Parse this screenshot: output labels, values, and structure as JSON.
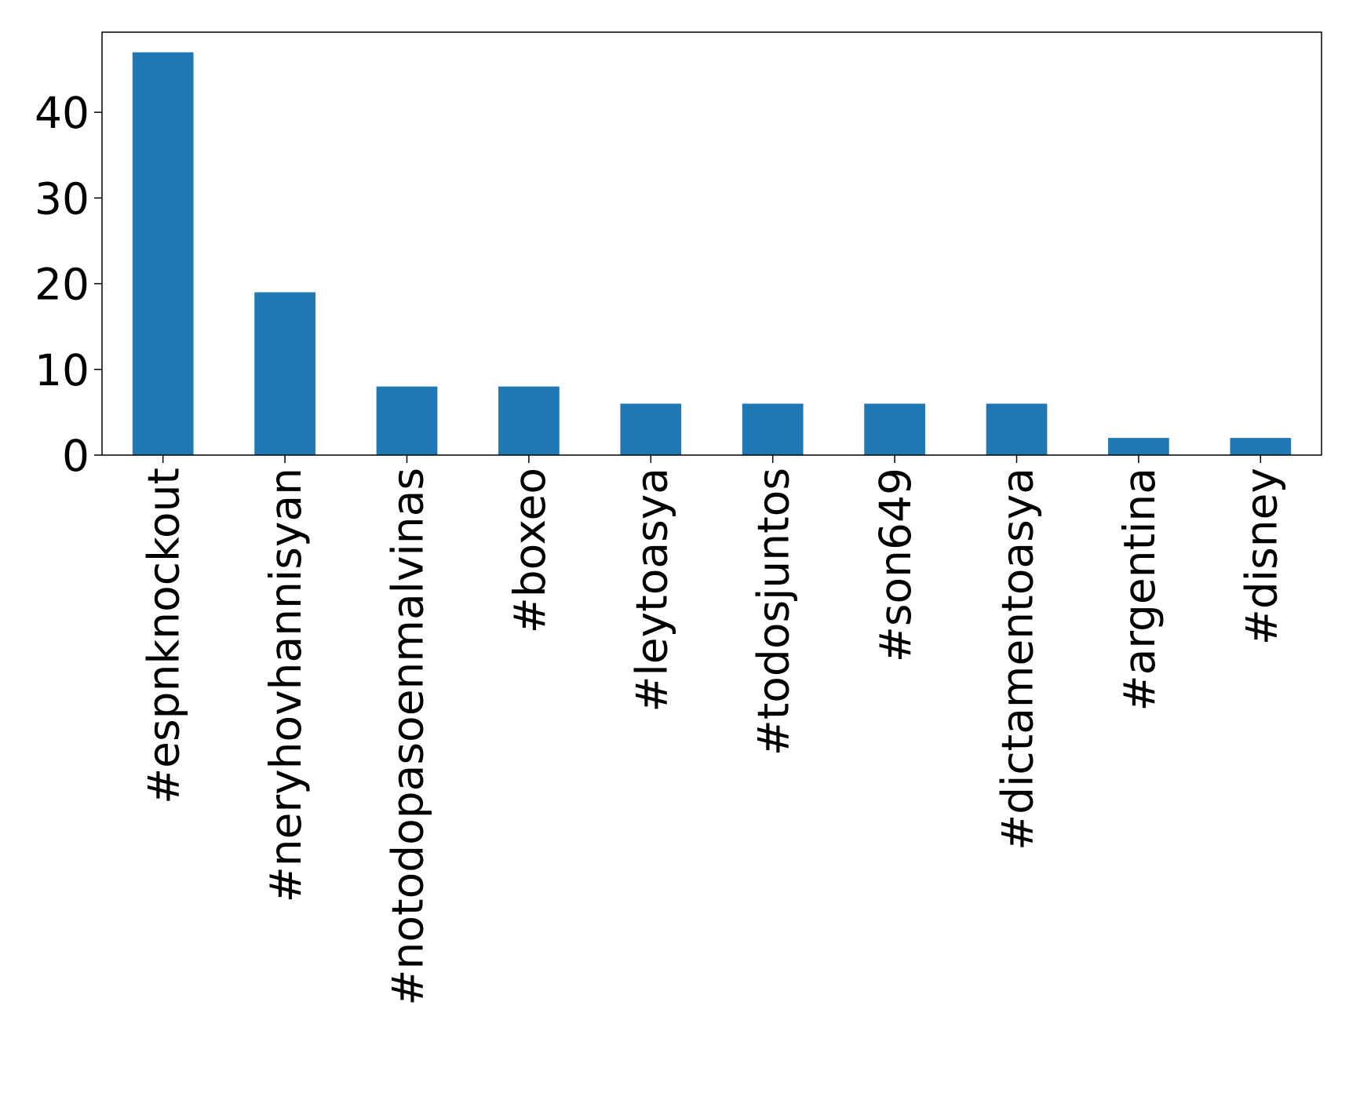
{
  "chart_data": {
    "type": "bar",
    "categories": [
      "#espnknockout",
      "#neryhovhannisyan",
      "#notodopasoenmalvinas",
      "#boxeo",
      "#leytoasya",
      "#todosjuntos",
      "#son649",
      "#dictamentoasya",
      "#argentina",
      "#disney"
    ],
    "values": [
      47,
      19,
      8,
      8,
      6,
      6,
      6,
      6,
      2,
      2
    ],
    "color": "#1f77b4",
    "ylim": [
      0,
      49.35
    ],
    "yticks": [
      0,
      10,
      20,
      30,
      40
    ],
    "grid": false
  }
}
